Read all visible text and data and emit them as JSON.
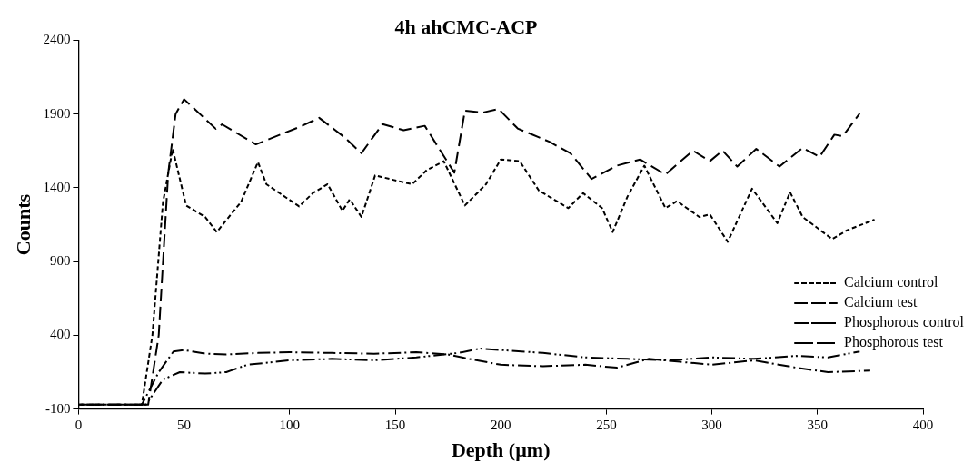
{
  "chart_data": {
    "type": "line",
    "title": "4h ahCMC-ACP",
    "xlabel": "Depth (µm)",
    "ylabel": "Counts",
    "xlim": [
      0,
      400
    ],
    "xticks": [
      0,
      50,
      100,
      150,
      200,
      250,
      300,
      350,
      400
    ],
    "ylim": [
      -100,
      2400
    ],
    "yticks": [
      -100,
      400,
      900,
      1400,
      1900,
      2400
    ],
    "grid": false,
    "legend": "right",
    "marker": "none",
    "series": [
      {
        "name": "Calcium control",
        "color": "#000000",
        "line_style": "dotted",
        "x": [
          0,
          30,
          35,
          40,
          44.6,
          51,
          60,
          65.5,
          77,
          85,
          89,
          104.5,
          111,
          118,
          125,
          128.5,
          134,
          140.5,
          149,
          158,
          165,
          173,
          183,
          193,
          200,
          209,
          218,
          232,
          239,
          248,
          253,
          260,
          268,
          278,
          283.5,
          294,
          299,
          307.5,
          319,
          331,
          337,
          343,
          357,
          364,
          377
        ],
        "values": [
          -70,
          -70,
          400,
          1300,
          1664,
          1280,
          1202,
          1100,
          1304,
          1574,
          1424,
          1274,
          1364,
          1424,
          1244,
          1322,
          1202,
          1484,
          1454,
          1424,
          1520,
          1580,
          1280,
          1424,
          1592,
          1580,
          1382,
          1262,
          1364,
          1262,
          1100,
          1340,
          1550,
          1262,
          1310,
          1202,
          1220,
          1034,
          1394,
          1160,
          1370,
          1202,
          1052,
          1112,
          1184
        ]
      },
      {
        "name": "Calcium test",
        "color": "#000000",
        "line_style": "dashed",
        "x": [
          0,
          33,
          38,
          42.5,
          46,
          50,
          65,
          68,
          84,
          105,
          114,
          126,
          134,
          144,
          154,
          164,
          178,
          183,
          191.5,
          199,
          208,
          223,
          233,
          243,
          255,
          266,
          278,
          291,
          299,
          305,
          312,
          321,
          332,
          343,
          351,
          358,
          362,
          370
        ],
        "values": [
          -70,
          -70,
          400,
          1500,
          1900,
          2000,
          1800,
          1830,
          1694,
          1814,
          1874,
          1742,
          1634,
          1832,
          1790,
          1820,
          1502,
          1922,
          1910,
          1934,
          1802,
          1712,
          1634,
          1460,
          1550,
          1592,
          1490,
          1652,
          1580,
          1652,
          1544,
          1664,
          1544,
          1670,
          1610,
          1760,
          1750,
          1904
        ]
      },
      {
        "name": "Phosphorous control",
        "color": "#000000",
        "line_style": "dashdotdot",
        "x": [
          0,
          32,
          40,
          48,
          60,
          70,
          80,
          100,
          120,
          140,
          160,
          180,
          190,
          200,
          220,
          240,
          260,
          280,
          300,
          320,
          340,
          355,
          370
        ],
        "values": [
          -70,
          -70,
          100,
          150,
          140,
          150,
          200,
          230,
          240,
          230,
          250,
          280,
          310,
          300,
          280,
          250,
          240,
          230,
          250,
          240,
          260,
          250,
          290
        ]
      },
      {
        "name": "Phosphorous test",
        "color": "#000000",
        "line_style": "dashdot",
        "x": [
          0,
          30,
          38,
          45,
          50,
          60,
          70,
          85,
          100,
          120,
          140,
          160,
          175,
          185,
          200,
          220,
          240,
          255,
          270,
          285,
          300,
          320,
          340,
          355,
          375
        ],
        "values": [
          -70,
          -70,
          150,
          290,
          300,
          275,
          270,
          280,
          285,
          280,
          275,
          285,
          270,
          240,
          200,
          190,
          200,
          180,
          240,
          220,
          200,
          230,
          180,
          150,
          160
        ]
      }
    ]
  }
}
